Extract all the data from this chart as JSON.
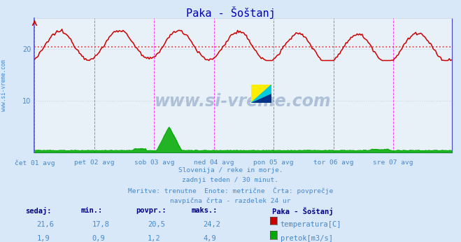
{
  "title": "Paka - Šoštanj",
  "bg_color": "#d8e8f8",
  "plot_bg_color": "#e8f0f8",
  "grid_color": "#c8d4e4",
  "x_labels": [
    "čet 01 avg",
    "pet 02 avg",
    "sob 03 avg",
    "ned 04 avg",
    "pon 05 avg",
    "tor 06 avg",
    "sre 07 avg"
  ],
  "n_points": 336,
  "ylim": [
    0,
    26
  ],
  "yticks": [
    10,
    20
  ],
  "avg_line_value": 20.5,
  "avg_line_color": "#ee4444",
  "temp_color": "#cc0000",
  "flow_color": "#00aa00",
  "temp_min": 17.8,
  "temp_max": 24.2,
  "temp_avg": 20.5,
  "flow_min": 0.9,
  "flow_max": 4.9,
  "flow_avg": 1.2,
  "flow_scale": 5.0,
  "vline_color": "#ff44ff",
  "watermark_text": "www.si-vreme.com",
  "watermark_color": "#1a4a8a",
  "left_label": "www.si-vreme.com",
  "subtitle_lines": [
    "Slovenija / reke in morje.",
    "zadnji teden / 30 minut.",
    "Meritve: trenutne  Enote: metrične  Črta: povprečje",
    "navpična črta - razdelek 24 ur"
  ],
  "table_headers": [
    "sedaj:",
    "min.:",
    "povpr.:",
    "maks.:"
  ],
  "station_name": "Paka - Šoštanj",
  "legend_items": [
    "temperatura[C]",
    "pretok[m3/s]"
  ],
  "legend_colors": [
    "#cc0000",
    "#00aa00"
  ],
  "table_row1": [
    "21,6",
    "17,8",
    "20,5",
    "24,2"
  ],
  "table_row2": [
    "1,9",
    "0,9",
    "1,2",
    "4,9"
  ],
  "title_color": "#0000bb",
  "axis_color": "#4488cc",
  "table_header_color": "#000088",
  "border_color": "#4444cc"
}
